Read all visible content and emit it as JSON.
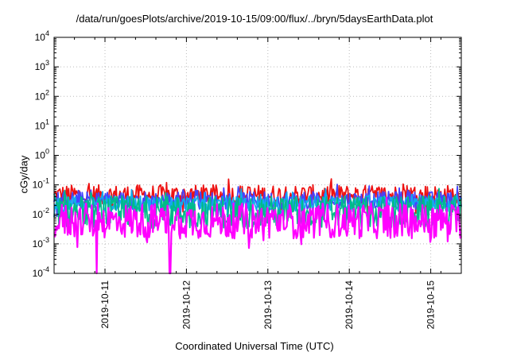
{
  "chart_data": {
    "type": "line",
    "title": "/data/run/goesPlots/archive/2019-10-15/09:00/flux/../bryn/5daysEarthData.plot",
    "xlabel": "Coordinated Universal Time (UTC)",
    "ylabel": "cGy/day",
    "yscale": "log",
    "ylim": [
      0.0001,
      10000
    ],
    "xlim": [
      "2019-10-10T09:00",
      "2019-10-15T09:00"
    ],
    "grid": true,
    "legend": "none",
    "y_ticks": [
      {
        "base": "10",
        "exp": "-4"
      },
      {
        "base": "10",
        "exp": "-3"
      },
      {
        "base": "10",
        "exp": "-2"
      },
      {
        "base": "10",
        "exp": "-1"
      },
      {
        "base": "10",
        "exp": "0"
      },
      {
        "base": "10",
        "exp": "1"
      },
      {
        "base": "10",
        "exp": "2"
      },
      {
        "base": "10",
        "exp": "3"
      },
      {
        "base": "10",
        "exp": "4"
      }
    ],
    "x_ticks": [
      "2019-10-11",
      "2019-10-12",
      "2019-10-13",
      "2019-10-14",
      "2019-10-15"
    ],
    "series": [
      {
        "color": "#ee1111",
        "x": [
          "2019-10-10T09:00",
          "2019-10-11T00:00",
          "2019-10-12T00:00",
          "2019-10-13T00:00",
          "2019-10-14T00:00",
          "2019-10-15T00:00",
          "2019-10-15T09:00"
        ],
        "values": [
          0.045,
          0.045,
          0.045,
          0.045,
          0.045,
          0.045,
          0.045
        ]
      },
      {
        "color": "#4444ff",
        "x": [
          "2019-10-10T09:00",
          "2019-10-11T00:00",
          "2019-10-12T00:00",
          "2019-10-13T00:00",
          "2019-10-14T00:00",
          "2019-10-15T00:00",
          "2019-10-15T09:00"
        ],
        "values": [
          0.03,
          0.03,
          0.03,
          0.03,
          0.03,
          0.03,
          0.03
        ]
      },
      {
        "color": "#11aaee",
        "x": [
          "2019-10-10T09:00",
          "2019-10-11T00:00",
          "2019-10-12T00:00",
          "2019-10-13T00:00",
          "2019-10-14T00:00",
          "2019-10-15T00:00",
          "2019-10-15T09:00"
        ],
        "values": [
          0.022,
          0.022,
          0.022,
          0.022,
          0.022,
          0.022,
          0.022
        ]
      },
      {
        "color": "#00bb88",
        "x": [
          "2019-10-10T09:00",
          "2019-10-11T00:00",
          "2019-10-12T00:00",
          "2019-10-13T00:00",
          "2019-10-14T00:00",
          "2019-10-15T00:00",
          "2019-10-15T09:00"
        ],
        "values": [
          0.012,
          0.012,
          0.012,
          0.012,
          0.012,
          0.012,
          0.012
        ]
      },
      {
        "color": "#ff00ff",
        "x": [
          "2019-10-10T09:00",
          "2019-10-11T00:00",
          "2019-10-12T00:00",
          "2019-10-13T00:00",
          "2019-10-14T00:00",
          "2019-10-15T00:00",
          "2019-10-15T09:00"
        ],
        "values": [
          0.006,
          0.006,
          0.006,
          0.006,
          0.006,
          0.006,
          0.006
        ],
        "dropouts": [
          "2019-10-10T21:30",
          "2019-10-11T19:10"
        ]
      }
    ]
  }
}
